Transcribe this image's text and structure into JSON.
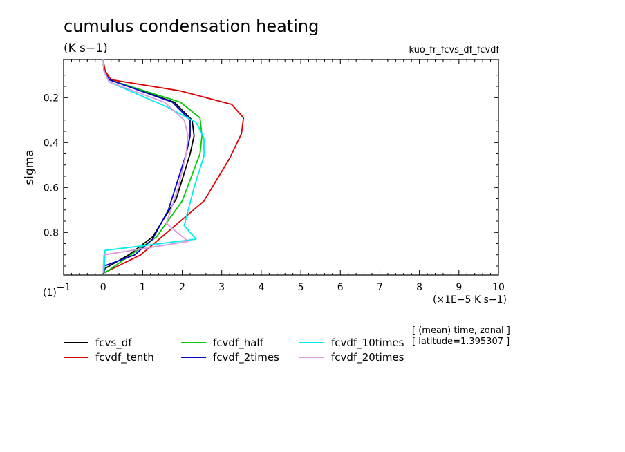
{
  "chart_data": {
    "type": "line",
    "title": "cumulus condensation heating",
    "units": "(K s−1)",
    "run_label": "kuo_fr_fcvs_df_fcvdf",
    "ylabel": "sigma",
    "xlabel": "(×1E−5 K s−1)",
    "corner_label": "(1)",
    "meta_lines": [
      "[ (mean) time, zonal ]",
      "[ latitude=1.395307 ]"
    ],
    "xlim": [
      -1,
      10
    ],
    "ylim": [
      0.03,
      0.99
    ],
    "y_inverted": true,
    "x_ticks": [
      -1,
      0,
      1,
      2,
      3,
      4,
      5,
      6,
      7,
      8,
      9,
      10
    ],
    "x_tick_labels": [
      "−1",
      "0",
      "1",
      "2",
      "3",
      "4",
      "5",
      "6",
      "7",
      "8",
      "9",
      "10"
    ],
    "y_ticks": [
      0.2,
      0.4,
      0.6,
      0.8
    ],
    "y_tick_labels": [
      "0.2",
      "0.4",
      "0.6",
      "0.8"
    ],
    "grid": false,
    "legend_position": "below",
    "series": [
      {
        "name": "fcvs_df",
        "color": "#000000",
        "x": [
          0,
          0.02,
          0.15,
          1.8,
          2.25,
          2.3,
          2.2,
          1.85,
          1.25,
          0.65,
          0.05,
          0.02
        ],
        "y": [
          0.03,
          0.08,
          0.12,
          0.22,
          0.3,
          0.37,
          0.45,
          0.65,
          0.82,
          0.9,
          0.96,
          0.98
        ]
      },
      {
        "name": "fcvdf_tenth",
        "color": "#dd0000",
        "x": [
          0,
          0.05,
          0.2,
          1.95,
          3.25,
          3.55,
          3.5,
          3.2,
          2.55,
          0.95,
          0.02
        ],
        "y": [
          0.03,
          0.08,
          0.12,
          0.17,
          0.23,
          0.29,
          0.36,
          0.47,
          0.66,
          0.9,
          0.98
        ]
      },
      {
        "name": "fcvdf_half",
        "color": "#00cc00",
        "x": [
          0,
          0.02,
          0.15,
          1.95,
          2.45,
          2.5,
          2.45,
          2.0,
          1.35,
          0.05
        ],
        "y": [
          0.03,
          0.08,
          0.12,
          0.22,
          0.29,
          0.37,
          0.45,
          0.66,
          0.82,
          0.98
        ]
      },
      {
        "name": "fcvdf_2times",
        "color": "#0000cc",
        "x": [
          0,
          0.02,
          0.15,
          1.75,
          2.2,
          2.2,
          2.1,
          1.65,
          1.25,
          0.8,
          0.02
        ],
        "y": [
          0.03,
          0.08,
          0.12,
          0.22,
          0.3,
          0.37,
          0.45,
          0.7,
          0.83,
          0.9,
          0.95
        ]
      },
      {
        "name": "fcvdf_10times",
        "color": "#00eeee",
        "x": [
          0,
          0.02,
          0.15,
          1.6,
          2.35,
          2.55,
          2.55,
          2.3,
          2.05,
          2.35,
          0.05,
          0.02
        ],
        "y": [
          0.03,
          0.08,
          0.13,
          0.24,
          0.31,
          0.38,
          0.46,
          0.6,
          0.77,
          0.83,
          0.88,
          0.99
        ]
      },
      {
        "name": "fcvdf_20times",
        "color": "#dd99dd",
        "x": [
          0,
          0.02,
          0.15,
          1.55,
          2.05,
          2.15,
          2.1,
          1.9,
          1.6,
          2.15,
          0.02,
          0.0
        ],
        "y": [
          0.03,
          0.08,
          0.13,
          0.22,
          0.3,
          0.37,
          0.45,
          0.6,
          0.76,
          0.84,
          0.9,
          0.98
        ]
      }
    ]
  }
}
